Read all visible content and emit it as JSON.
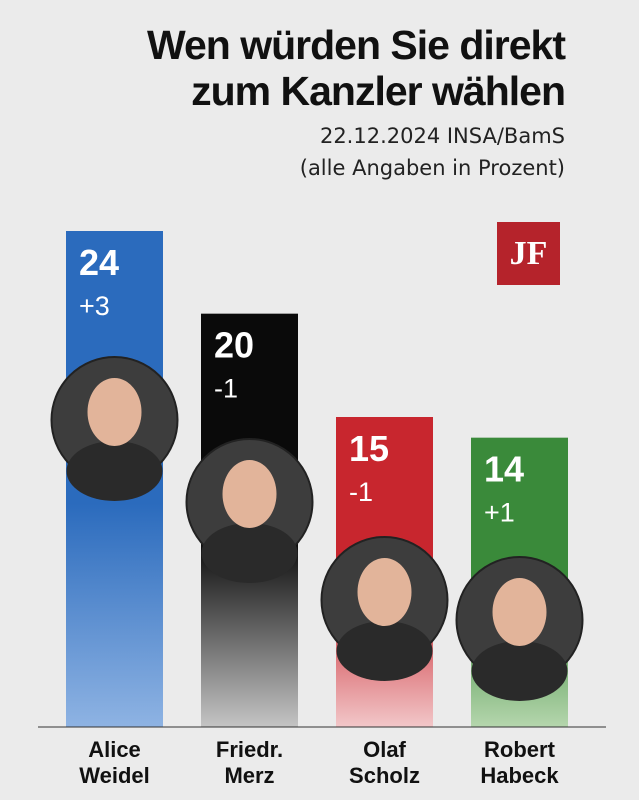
{
  "title_lines": [
    "Wen würden Sie direkt",
    "zum Kanzler wählen"
  ],
  "source": "22.12.2024 INSA/BamS",
  "note": "(alle Angaben in Prozent)",
  "logo_text": "JF",
  "chart_data": {
    "type": "bar",
    "title": "Wen würden Sie direkt zum Kanzler wählen",
    "subtitle": "22.12.2024 INSA/BamS",
    "ylabel": "",
    "xlabel": "",
    "unit": "(alle Angaben in Prozent)",
    "categories": [
      [
        "Alice",
        "Weidel"
      ],
      [
        "Friedr.",
        "Merz"
      ],
      [
        "Olaf",
        "Scholz"
      ],
      [
        "Robert",
        "Habeck"
      ]
    ],
    "values": [
      24,
      20,
      15,
      14
    ],
    "changes": [
      "+3",
      "-1",
      "-1",
      "+1"
    ],
    "colors": [
      "#2b6bbd",
      "#0a0a0a",
      "#c8262e",
      "#3a8a3a"
    ],
    "fade_colors": [
      "#8eb3e3",
      "#c4c4c4",
      "#f2c7c9",
      "#b5d6ad"
    ],
    "portrait_icons": [
      "portrait-weidel-icon",
      "portrait-merz-icon",
      "portrait-scholz-icon",
      "portrait-habeck-icon"
    ],
    "ylim": [
      0,
      24
    ],
    "grid": false,
    "legend": "none"
  }
}
